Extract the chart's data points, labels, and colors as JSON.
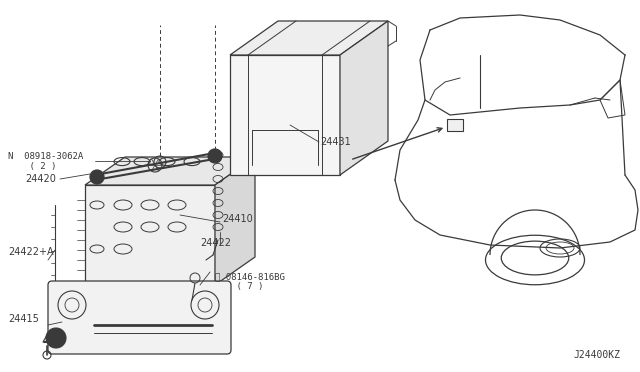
{
  "bg_color": "#ffffff",
  "line_color": "#3a3a3a",
  "diagram_id": "J24400KZ",
  "parts": {
    "24410": {
      "label": "24410"
    },
    "24415": {
      "label": "24415"
    },
    "24420": {
      "label": "24420"
    },
    "24422": {
      "label": "24422"
    },
    "24422A": {
      "label": "24422+A"
    },
    "24431": {
      "label": "24431"
    },
    "08918": {
      "label": "N  08918-3062A\n    ( 2 )"
    },
    "08146": {
      "label": "Ⓑ 08146-816BG\n    ( 7 )"
    }
  }
}
